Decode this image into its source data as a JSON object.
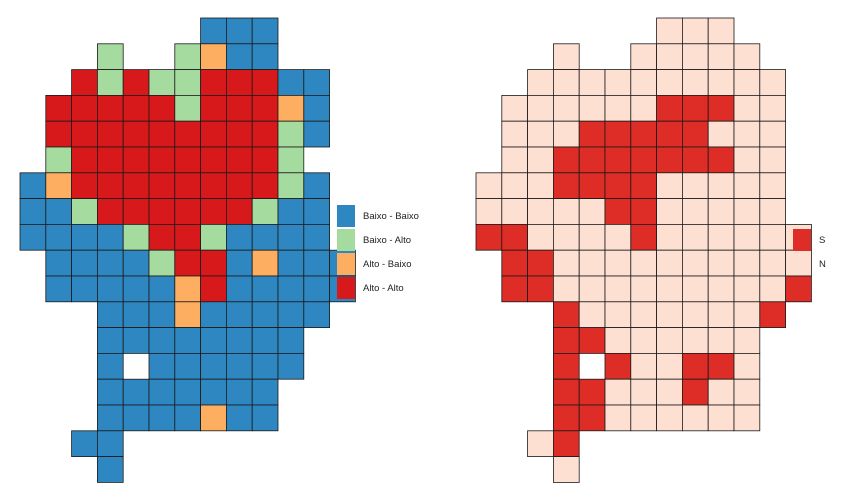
{
  "colors": {
    "Baixo - Baixo": "#2e87c0",
    "Baixo - Alto": "#a6dba0",
    "Alto - Baixo": "#fdae61",
    "Alto - Alto": "#d7191c",
    "S": "#de2d26",
    "N": "#fee0d2",
    "border": "#1a1a1a"
  },
  "lisa_map": {
    "legend": [
      "Baixo - Baixo",
      "Baixo - Alto",
      "Alto - Baixo",
      "Alto - Alto"
    ],
    "rows": [
      "       BBB   ",
      "   G  GOBB   ",
      "  RGRGGRRRBB ",
      " RRRRRGRRROB ",
      " RRRRRRRRRGB ",
      " GRRRRRRRRG  ",
      "BORRRRRRRRGB ",
      "BBGRRRRRRGBB ",
      "BBBBGRRGBBBB ",
      " BBBBGRRBOBBB",
      " BBBBBORBBBBB",
      "   BBBOBBBBB ",
      "   BBBBBBBB  ",
      "   B BBBBBB  ",
      "   BBBBBBB   ",
      "   BBBBOBB   ",
      "  BB         ",
      "   B         "
    ]
  },
  "sig_map": {
    "legend": [
      "S",
      "N"
    ],
    "rows": [
      "       NNN   ",
      "   N  NNNNN  ",
      "  NNNNNNNNNN ",
      " NNNNNNSSSNN ",
      " NNNSSSSSNNN ",
      " NNSSSSSSSNN ",
      "NNNSSSSNNNNN ",
      "NNNNNSSNNNNN ",
      "SSNNNNSNNNNNN",
      " SSNNNNNNNNNN",
      " SSNNNNNNNNNS",
      "   SNNNNNNNS ",
      "   SSNNNNNN  ",
      "   S SNNSSN  ",
      "   SSNNNSNN  ",
      "   SSNNNNNN  ",
      "  NS         ",
      "   N         "
    ]
  }
}
